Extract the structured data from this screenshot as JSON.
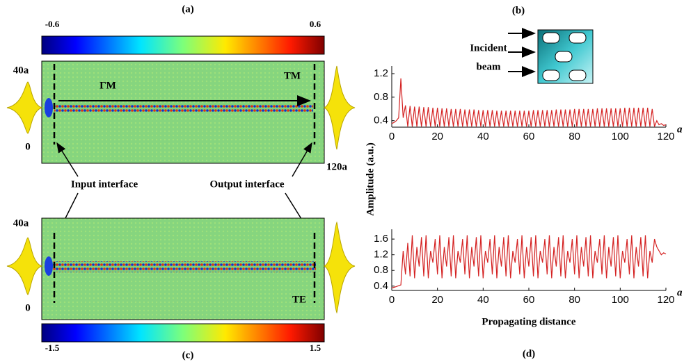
{
  "panels": {
    "a": "(a)",
    "b": "(b)",
    "c": "(c)",
    "d": "(d)"
  },
  "map_a": {
    "colorbar": {
      "min": -0.6,
      "max": 0.6
    },
    "y_top": "40a",
    "y_bottom": "0",
    "x_end": "120a",
    "label_in": "ΓM",
    "label_out": "TM"
  },
  "map_c": {
    "colorbar": {
      "min": -1.5,
      "max": 1.5
    },
    "y_top": "40a",
    "y_bottom": "0",
    "label_out": "TE"
  },
  "annotations": {
    "input": "Input interface",
    "output": "Output interface"
  },
  "inset": {
    "label": [
      "Incident",
      "beam"
    ]
  },
  "chart_data": [
    {
      "type": "line",
      "ylabel": "Amplitude (a.u.)",
      "x_unit": "a",
      "x": [
        0,
        1,
        2,
        3,
        4,
        5,
        6,
        7,
        8,
        9,
        10,
        11,
        12,
        13,
        14,
        15,
        16,
        17,
        18,
        19,
        20,
        21,
        22,
        23,
        24,
        25,
        26,
        27,
        28,
        29,
        30,
        31,
        32,
        33,
        34,
        35,
        36,
        37,
        38,
        39,
        40,
        41,
        42,
        43,
        44,
        45,
        46,
        47,
        48,
        49,
        50,
        51,
        52,
        53,
        54,
        55,
        56,
        57,
        58,
        59,
        60,
        61,
        62,
        63,
        64,
        65,
        66,
        67,
        68,
        69,
        70,
        71,
        72,
        73,
        74,
        75,
        76,
        77,
        78,
        79,
        80,
        81,
        82,
        83,
        84,
        85,
        86,
        87,
        88,
        89,
        90,
        91,
        92,
        93,
        94,
        95,
        96,
        97,
        98,
        99,
        100,
        101,
        102,
        103,
        104,
        105,
        106,
        107,
        108,
        109,
        110,
        111,
        112,
        113,
        114,
        115,
        116,
        117,
        118,
        119,
        120
      ],
      "series": [
        {
          "color": "#d42222",
          "values": [
            0.35,
            0.37,
            0.4,
            0.45,
            1.12,
            0.45,
            0.66,
            0.3,
            0.65,
            0.3,
            0.64,
            0.3,
            0.64,
            0.3,
            0.63,
            0.3,
            0.63,
            0.3,
            0.62,
            0.3,
            0.62,
            0.3,
            0.61,
            0.3,
            0.61,
            0.3,
            0.6,
            0.3,
            0.6,
            0.3,
            0.6,
            0.3,
            0.59,
            0.3,
            0.59,
            0.3,
            0.59,
            0.3,
            0.58,
            0.3,
            0.58,
            0.3,
            0.58,
            0.3,
            0.58,
            0.3,
            0.57,
            0.3,
            0.57,
            0.3,
            0.57,
            0.3,
            0.57,
            0.3,
            0.57,
            0.3,
            0.57,
            0.3,
            0.57,
            0.3,
            0.57,
            0.3,
            0.58,
            0.3,
            0.58,
            0.3,
            0.58,
            0.3,
            0.58,
            0.3,
            0.58,
            0.3,
            0.59,
            0.3,
            0.59,
            0.3,
            0.59,
            0.3,
            0.59,
            0.3,
            0.6,
            0.3,
            0.6,
            0.3,
            0.6,
            0.3,
            0.6,
            0.3,
            0.6,
            0.3,
            0.61,
            0.3,
            0.61,
            0.3,
            0.61,
            0.3,
            0.61,
            0.3,
            0.61,
            0.3,
            0.61,
            0.3,
            0.62,
            0.3,
            0.62,
            0.3,
            0.62,
            0.3,
            0.62,
            0.3,
            0.62,
            0.3,
            0.62,
            0.3,
            0.6,
            0.3,
            0.4,
            0.33,
            0.35,
            0.32,
            0.33
          ]
        }
      ],
      "xlim": [
        0,
        120
      ],
      "ylim": [
        0.29,
        1.33
      ],
      "xticks": [
        0,
        20,
        40,
        60,
        80,
        100,
        120
      ],
      "yticks": [
        0.4,
        0.8,
        1.2
      ]
    },
    {
      "type": "line",
      "xlabel": "Propagating distance",
      "x_unit": "a",
      "x": [
        0,
        1,
        2,
        3,
        4,
        5,
        6,
        7,
        8,
        9,
        10,
        11,
        12,
        13,
        14,
        15,
        16,
        17,
        18,
        19,
        20,
        21,
        22,
        23,
        24,
        25,
        26,
        27,
        28,
        29,
        30,
        31,
        32,
        33,
        34,
        35,
        36,
        37,
        38,
        39,
        40,
        41,
        42,
        43,
        44,
        45,
        46,
        47,
        48,
        49,
        50,
        51,
        52,
        53,
        54,
        55,
        56,
        57,
        58,
        59,
        60,
        61,
        62,
        63,
        64,
        65,
        66,
        67,
        68,
        69,
        70,
        71,
        72,
        73,
        74,
        75,
        76,
        77,
        78,
        79,
        80,
        81,
        82,
        83,
        84,
        85,
        86,
        87,
        88,
        89,
        90,
        91,
        92,
        93,
        94,
        95,
        96,
        97,
        98,
        99,
        100,
        101,
        102,
        103,
        104,
        105,
        106,
        107,
        108,
        109,
        110,
        111,
        112,
        113,
        114,
        115,
        116,
        117,
        118,
        119,
        120
      ],
      "series": [
        {
          "color": "#d42222",
          "values": [
            0.35,
            0.37,
            0.39,
            0.41,
            0.43,
            1.3,
            0.7,
            1.5,
            0.65,
            1.7,
            0.6,
            1.4,
            0.9,
            1.65,
            0.65,
            1.7,
            0.6,
            1.3,
            1.0,
            1.6,
            0.7,
            1.7,
            0.6,
            1.4,
            0.9,
            1.65,
            0.65,
            1.7,
            0.6,
            1.3,
            1.0,
            1.6,
            0.7,
            1.7,
            0.6,
            1.4,
            0.9,
            1.65,
            0.65,
            1.7,
            0.6,
            1.3,
            1.0,
            1.6,
            0.7,
            1.7,
            0.6,
            1.4,
            0.9,
            1.65,
            0.65,
            1.7,
            0.6,
            1.3,
            1.0,
            1.6,
            0.7,
            1.7,
            0.6,
            1.4,
            0.9,
            1.65,
            0.65,
            1.7,
            0.6,
            1.3,
            1.0,
            1.6,
            0.7,
            1.7,
            0.6,
            1.4,
            0.9,
            1.65,
            0.65,
            1.7,
            0.6,
            1.3,
            1.0,
            1.6,
            0.7,
            1.7,
            0.6,
            1.4,
            0.9,
            1.65,
            0.65,
            1.7,
            0.6,
            1.3,
            1.0,
            1.6,
            0.7,
            1.7,
            0.6,
            1.4,
            0.9,
            1.65,
            0.65,
            1.7,
            0.6,
            1.3,
            1.0,
            1.6,
            0.7,
            1.7,
            0.6,
            1.4,
            0.9,
            1.65,
            0.65,
            1.7,
            0.6,
            1.3,
            1.0,
            1.6,
            1.4,
            1.3,
            1.2,
            1.25,
            1.22
          ]
        }
      ],
      "xlim": [
        0,
        120
      ],
      "ylim": [
        0.29,
        1.85
      ],
      "xticks": [
        0,
        20,
        40,
        60,
        80,
        100,
        120
      ],
      "yticks": [
        0.4,
        0.8,
        1.2,
        1.6
      ]
    }
  ]
}
